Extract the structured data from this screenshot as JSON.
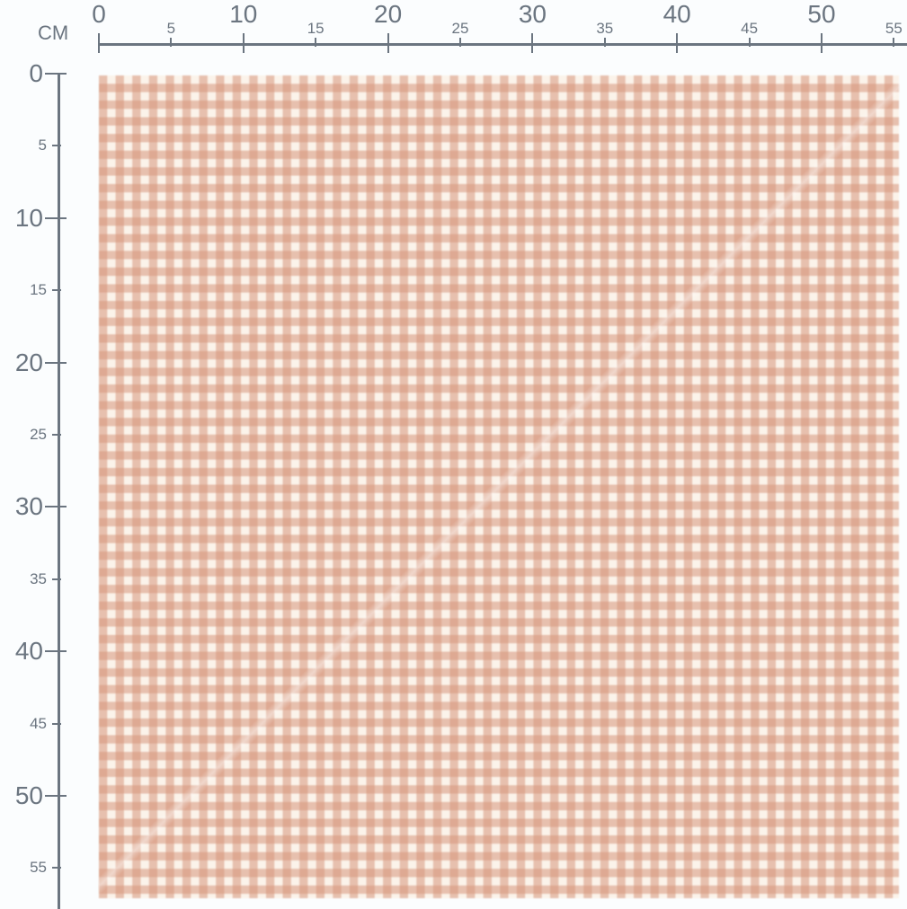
{
  "ruler": {
    "unit": "CM",
    "horizontal_labels": [
      "0",
      "5",
      "10",
      "15",
      "20",
      "25",
      "30",
      "35",
      "40",
      "45",
      "50",
      "55"
    ],
    "vertical_labels": [
      "0",
      "5",
      "10",
      "15",
      "20",
      "25",
      "30",
      "35",
      "40",
      "45",
      "50",
      "55"
    ]
  },
  "swatch": {
    "pattern": "gingham check",
    "colors": {
      "dark": "#d9a590",
      "mid": "#e8c4b2",
      "light": "#fbf3ea"
    }
  },
  "colors": {
    "ruler": "#6b7580",
    "background": "#fbfdfe"
  }
}
